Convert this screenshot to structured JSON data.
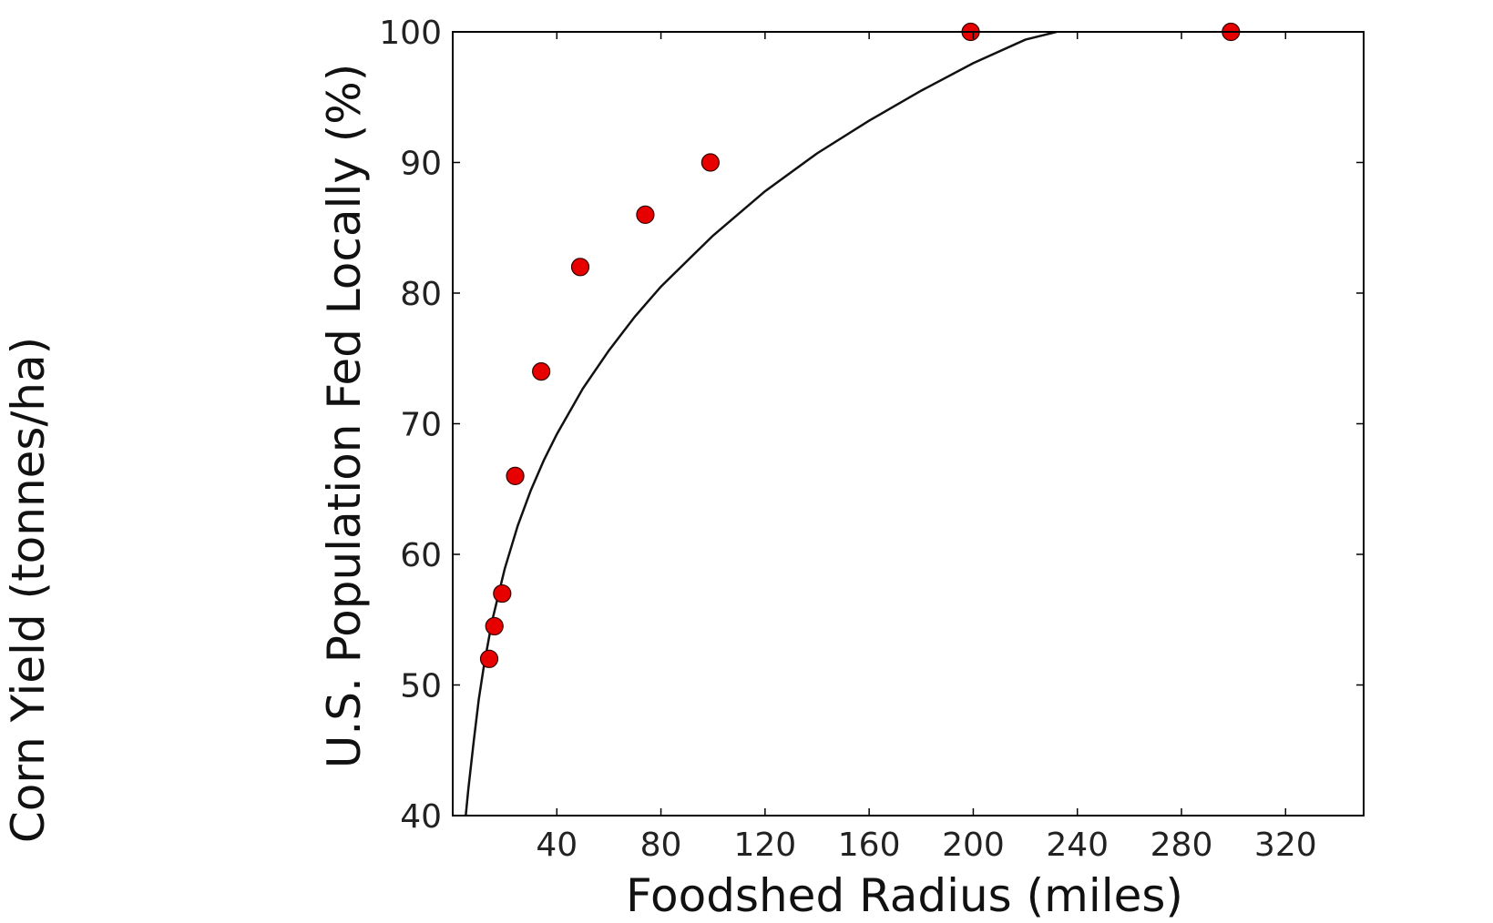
{
  "chart_data": {
    "type": "scatter",
    "title": "",
    "xlabel": "Foodshed Radius (miles)",
    "ylabel": "U.S. Population Fed Locally (%)",
    "outer_ylabel": "Corn Yield (tonnes/ha)",
    "xlim": [
      0,
      350
    ],
    "ylim": [
      40,
      100
    ],
    "xticks": [
      40,
      80,
      120,
      160,
      200,
      240,
      280,
      320
    ],
    "yticks": [
      40,
      50,
      60,
      70,
      80,
      90,
      100
    ],
    "grid": false,
    "legend": "none",
    "series": [
      {
        "kind": "scatter",
        "color": "#e60000",
        "x": [
          14,
          16,
          19,
          24,
          34,
          49,
          74,
          99,
          199,
          299
        ],
        "y": [
          52,
          54.5,
          57,
          66,
          74,
          82,
          86,
          90,
          100,
          100
        ]
      },
      {
        "kind": "line",
        "color": "#111111",
        "x": [
          5,
          6,
          8,
          10,
          12,
          15,
          20,
          25,
          30,
          35,
          40,
          50,
          60,
          70,
          80,
          100,
          120,
          140,
          160,
          180,
          200,
          220,
          232
        ],
        "y": [
          40,
          42,
          45.6,
          48.9,
          51.5,
          54.8,
          58.9,
          62.2,
          64.9,
          67.2,
          69.2,
          72.7,
          75.6,
          78.2,
          80.5,
          84.4,
          87.8,
          90.7,
          93.2,
          95.5,
          97.6,
          99.4,
          100
        ]
      }
    ]
  }
}
